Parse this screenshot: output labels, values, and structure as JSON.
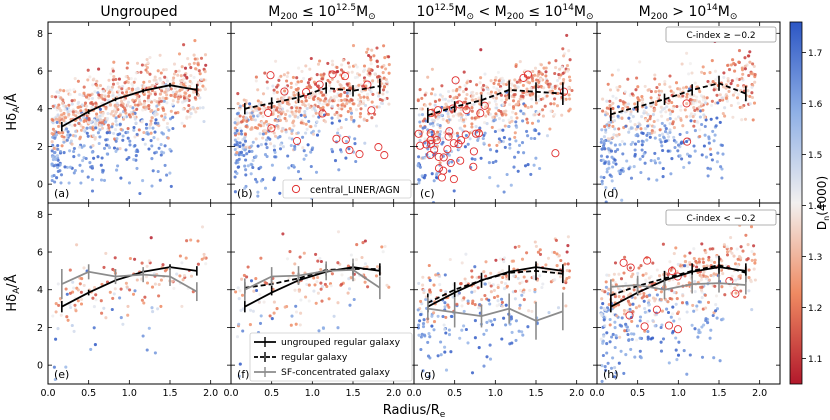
{
  "figure": {
    "xlabel": "Radius/R",
    "xlabel_sub": "e",
    "ylabel": "Hδ",
    "ylabel_sub": "A",
    "ylabel_unit": "/Å",
    "colorbar_label": "D",
    "colorbar_sub": "n",
    "colorbar_paren": "(4000)",
    "colorbar_ticks": [
      "1.1",
      "1.2",
      "1.3",
      "1.4",
      "1.5",
      "1.6",
      "1.7"
    ],
    "colorbar_range": [
      1.05,
      1.76
    ],
    "colors": {
      "low": "#b2182b",
      "mid": "#f0f0f0",
      "high": "#2c56c4"
    },
    "xlim": [
      0.0,
      2.25
    ],
    "ylim": [
      -1.0,
      8.6
    ],
    "xticks": [
      "0.0",
      "0.5",
      "1.0",
      "1.5",
      "2.0"
    ],
    "yticks": [
      "0",
      "2",
      "4",
      "6",
      "8"
    ]
  },
  "column_titles": [
    {
      "text": "Ungrouped"
    },
    {
      "text": "M",
      "sub": "200",
      "rel": " ≤ 10",
      "sup": "12.5",
      "unit": "M",
      "unit_sub": "⊙"
    },
    {
      "text": "10",
      "sup": "12.5",
      "unit": "M",
      "unit_sub": "⊙",
      "mid": " < M",
      "sub": "200",
      "rel": " ≤ 10",
      "sup2": "14",
      "unit2": "M",
      "unit2_sub": "⊙"
    },
    {
      "text": "M",
      "sub": "200",
      "rel": " > 10",
      "sup": "14",
      "unit": "M",
      "unit_sub": "⊙"
    }
  ],
  "panel_labels": [
    "(a)",
    "(b)",
    "(c)",
    "(d)",
    "(e)",
    "(f)",
    "(g)",
    "(h)"
  ],
  "row_boxes": [
    "C-index ≥ −0.2",
    "C-index < −0.2"
  ],
  "legend_top": {
    "label": "central_LINER/AGN"
  },
  "legend_bottom": [
    {
      "label": "ungrouped regular galaxy",
      "style": "solid"
    },
    {
      "label": "regular galaxy",
      "style": "dashed"
    },
    {
      "label": "SF-concentrated galaxy",
      "style": "gray"
    }
  ],
  "chart_data": [
    {
      "panel": "(a)",
      "type": "scatter",
      "series": [
        {
          "name": "ungrouped regular galaxy",
          "style": "solid",
          "x": [
            0.17,
            0.5,
            0.83,
            1.17,
            1.5,
            1.83
          ],
          "y": [
            3.05,
            3.85,
            4.5,
            4.95,
            5.25,
            5.0
          ],
          "yerr": [
            0.25,
            0.12,
            0.1,
            0.1,
            0.12,
            0.3
          ]
        }
      ],
      "scatter": {
        "n": 900,
        "blue_fraction": 0.28
      }
    },
    {
      "panel": "(b)",
      "type": "scatter",
      "series": [
        {
          "name": "regular galaxy",
          "style": "dashed",
          "x": [
            0.17,
            0.5,
            0.83,
            1.17,
            1.5,
            1.83
          ],
          "y": [
            4.0,
            4.3,
            4.6,
            5.1,
            4.95,
            5.2
          ],
          "yerr": [
            0.3,
            0.3,
            0.3,
            0.3,
            0.3,
            0.4
          ]
        }
      ],
      "scatter": {
        "n": 750,
        "blue_fraction": 0.2
      },
      "agn": 18
    },
    {
      "panel": "(c)",
      "type": "scatter",
      "series": [
        {
          "name": "regular galaxy",
          "style": "dashed",
          "x": [
            0.17,
            0.5,
            0.83,
            1.17,
            1.5,
            1.83
          ],
          "y": [
            3.65,
            4.1,
            4.45,
            5.0,
            4.9,
            4.8
          ],
          "yerr": [
            0.4,
            0.3,
            0.3,
            0.5,
            0.5,
            0.6
          ]
        }
      ],
      "scatter": {
        "n": 650,
        "blue_fraction": 0.25
      },
      "agn": 40
    },
    {
      "panel": "(d)",
      "type": "scatter",
      "series": [
        {
          "name": "regular galaxy",
          "style": "dashed",
          "x": [
            0.17,
            0.5,
            0.83,
            1.17,
            1.5,
            1.83
          ],
          "y": [
            3.7,
            4.1,
            4.5,
            5.0,
            5.35,
            4.8
          ],
          "yerr": [
            0.35,
            0.3,
            0.3,
            0.3,
            0.4,
            0.4
          ]
        }
      ],
      "scatter": {
        "n": 600,
        "blue_fraction": 0.3
      },
      "agn": 2
    },
    {
      "panel": "(e)",
      "type": "scatter",
      "series": [
        {
          "name": "ungrouped regular galaxy",
          "style": "solid",
          "x": [
            0.17,
            0.5,
            0.83,
            1.17,
            1.5,
            1.83
          ],
          "y": [
            3.1,
            3.85,
            4.5,
            4.95,
            5.2,
            5.0
          ],
          "yerr": [
            0.3,
            0.15,
            0.1,
            0.1,
            0.15,
            0.25
          ]
        },
        {
          "name": "SF-concentrated galaxy",
          "style": "gray",
          "x": [
            0.17,
            0.5,
            0.83,
            1.17,
            1.5,
            1.83
          ],
          "y": [
            4.3,
            4.95,
            4.7,
            4.8,
            4.7,
            3.9
          ],
          "yerr": [
            0.8,
            0.4,
            0.4,
            0.4,
            0.5,
            0.5
          ]
        }
      ],
      "scatter": {
        "n": 150,
        "blue_fraction": 0.1
      }
    },
    {
      "panel": "(f)",
      "type": "scatter",
      "series": [
        {
          "name": "ungrouped regular galaxy",
          "style": "solid",
          "x": [
            0.17,
            0.5,
            0.83,
            1.17,
            1.5,
            1.83
          ],
          "y": [
            3.1,
            3.85,
            4.5,
            4.95,
            5.2,
            5.0
          ],
          "yerr": [
            0.3,
            0.15,
            0.1,
            0.1,
            0.15,
            0.25
          ]
        },
        {
          "name": "regular galaxy",
          "style": "dashed",
          "x": [
            0.17,
            0.5,
            0.83,
            1.17,
            1.5,
            1.83
          ],
          "y": [
            4.1,
            4.3,
            4.6,
            5.05,
            5.1,
            5.1
          ],
          "yerr": [
            0.3,
            0.3,
            0.3,
            0.3,
            0.3,
            0.3
          ]
        },
        {
          "name": "SF-concentrated galaxy",
          "style": "gray",
          "x": [
            0.17,
            0.5,
            0.83,
            1.17,
            1.5,
            1.83
          ],
          "y": [
            4.0,
            4.7,
            4.75,
            5.0,
            5.05,
            4.1
          ],
          "yerr": [
            0.6,
            0.5,
            0.5,
            0.5,
            0.6,
            0.6
          ]
        }
      ],
      "scatter": {
        "n": 150,
        "blue_fraction": 0.12
      }
    },
    {
      "panel": "(g)",
      "type": "scatter",
      "series": [
        {
          "name": "ungrouped regular galaxy",
          "style": "solid",
          "x": [
            0.17,
            0.5,
            0.83,
            1.17,
            1.5,
            1.83
          ],
          "y": [
            3.1,
            3.85,
            4.5,
            4.95,
            5.2,
            5.0
          ],
          "yerr": [
            0.3,
            0.15,
            0.1,
            0.1,
            0.15,
            0.25
          ]
        },
        {
          "name": "regular galaxy",
          "style": "dashed",
          "x": [
            0.17,
            0.5,
            0.83,
            1.17,
            1.5,
            1.83
          ],
          "y": [
            3.3,
            4.0,
            4.5,
            4.9,
            5.0,
            4.85
          ],
          "yerr": [
            0.5,
            0.4,
            0.4,
            0.4,
            0.5,
            0.5
          ]
        },
        {
          "name": "SF-concentrated galaxy",
          "style": "gray",
          "x": [
            0.17,
            0.5,
            0.83,
            1.17,
            1.5,
            1.83
          ],
          "y": [
            3.0,
            2.8,
            2.6,
            3.0,
            2.35,
            2.85
          ],
          "yerr": [
            0.6,
            0.8,
            0.6,
            0.8,
            1.0,
            1.0
          ]
        }
      ],
      "scatter": {
        "n": 320,
        "blue_fraction": 0.35
      }
    },
    {
      "panel": "(h)",
      "type": "scatter",
      "series": [
        {
          "name": "ungrouped regular galaxy",
          "style": "solid",
          "x": [
            0.17,
            0.5,
            0.83,
            1.17,
            1.5,
            1.83
          ],
          "y": [
            3.1,
            3.85,
            4.5,
            4.95,
            5.2,
            5.0
          ],
          "yerr": [
            0.3,
            0.15,
            0.1,
            0.1,
            0.15,
            0.25
          ]
        },
        {
          "name": "regular galaxy",
          "style": "dashed",
          "x": [
            0.17,
            0.5,
            0.83,
            1.17,
            1.5,
            1.83
          ],
          "y": [
            3.7,
            4.2,
            4.6,
            5.0,
            5.3,
            4.9
          ],
          "yerr": [
            0.4,
            0.4,
            0.4,
            0.4,
            0.5,
            0.5
          ]
        },
        {
          "name": "SF-concentrated galaxy",
          "style": "gray",
          "x": [
            0.17,
            0.5,
            0.83,
            1.17,
            1.5,
            1.83
          ],
          "y": [
            4.15,
            4.25,
            4.0,
            4.3,
            4.35,
            4.25
          ],
          "yerr": [
            0.4,
            0.5,
            0.5,
            0.5,
            0.5,
            0.5
          ]
        }
      ],
      "scatter": {
        "n": 500,
        "blue_fraction": 0.3
      },
      "agn": 12
    }
  ]
}
